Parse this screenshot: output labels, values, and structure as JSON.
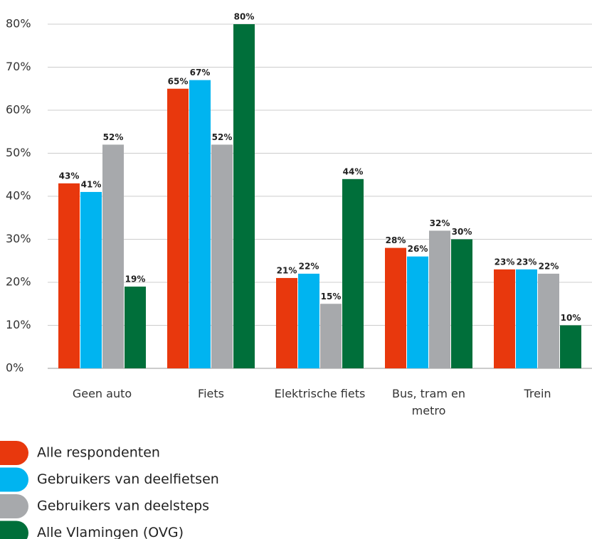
{
  "chart_data": {
    "type": "bar",
    "categories": [
      "Geen auto",
      "Fiets",
      "Elektrische fiets",
      "Bus, tram en metro",
      "Trein"
    ],
    "series": [
      {
        "name": "Alle respondenten",
        "color": "#e8380d",
        "values": [
          43,
          65,
          21,
          28,
          23
        ],
        "value_labels": [
          "43%",
          "65%",
          "21%",
          "28%",
          "23%"
        ]
      },
      {
        "name": "Gebruikers van deelfietsen",
        "color": "#00b4f0",
        "values": [
          41,
          67,
          22,
          26,
          23
        ],
        "value_labels": [
          "41%",
          "67%",
          "22%",
          "26%",
          "23%"
        ]
      },
      {
        "name": "Gebruikers van deelsteps",
        "color": "#a7a9ac",
        "values": [
          52,
          52,
          15,
          32,
          22
        ],
        "value_labels": [
          "52%",
          "52%",
          "15%",
          "32%",
          "22%"
        ]
      },
      {
        "name": "Alle Vlamingen (OVG)",
        "color": "#006f3a",
        "values": [
          19,
          80,
          44,
          30,
          10
        ],
        "value_labels": [
          "19%",
          "80%",
          "44%",
          "30%",
          "10%"
        ]
      }
    ],
    "ylim": [
      0,
      80
    ],
    "yticks": [
      {
        "value": 0,
        "label": "0%"
      },
      {
        "value": 10,
        "label": "10%"
      },
      {
        "value": 20,
        "label": "20%"
      },
      {
        "value": 30,
        "label": "30%"
      },
      {
        "value": 40,
        "label": "40%"
      },
      {
        "value": 50,
        "label": "50%"
      },
      {
        "value": 60,
        "label": "60%"
      },
      {
        "value": 70,
        "label": "70%"
      },
      {
        "value": 80,
        "label": "80%"
      }
    ],
    "grid": true
  }
}
